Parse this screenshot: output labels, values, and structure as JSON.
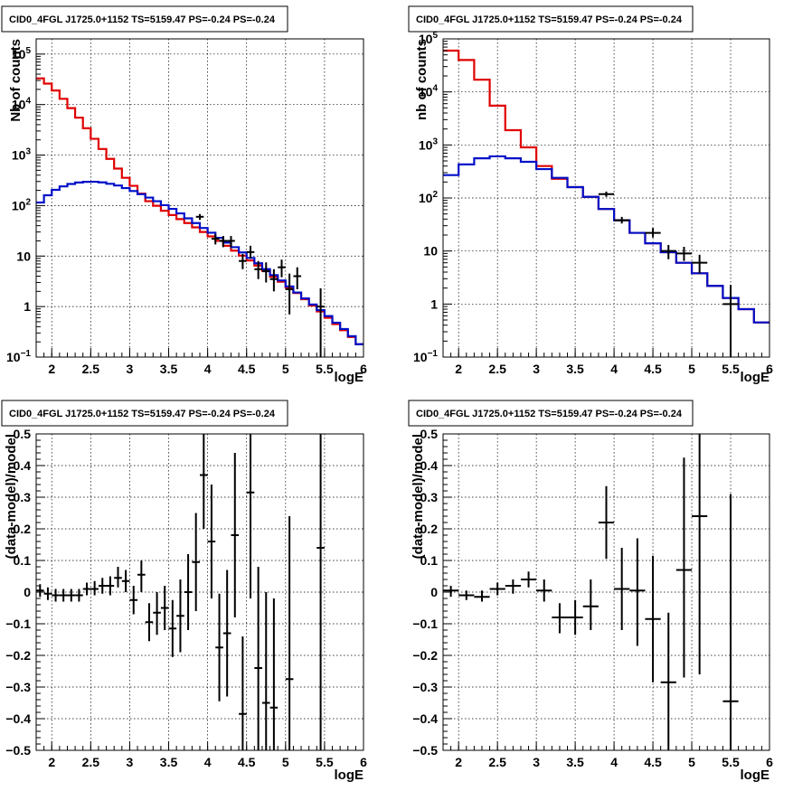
{
  "chart_data": [
    {
      "id": "top-left",
      "type": "line",
      "title": "CID0_4FGL J1725.0+1152 TS=5159.47 PS=-0.24 PS=-0.24",
      "xlabel": "logE",
      "ylabel": "Nb of counts",
      "xlim": [
        1.8,
        6.0
      ],
      "ylim": [
        0.1,
        200000
      ],
      "yscale": "log",
      "grid": true,
      "x_ticks": [
        {
          "v": 2,
          "label": "2"
        },
        {
          "v": 2.5,
          "label": "2.5"
        },
        {
          "v": 3,
          "label": "3"
        },
        {
          "v": 3.5,
          "label": "3.5"
        },
        {
          "v": 4,
          "label": "4"
        },
        {
          "v": 4.5,
          "label": "4.5"
        },
        {
          "v": 5,
          "label": "5"
        },
        {
          "v": 5.5,
          "label": "5.5"
        },
        {
          "v": 6,
          "label": "6"
        }
      ],
      "y_ticks": [
        {
          "v": 0.1,
          "base": "10",
          "exp": "−1"
        },
        {
          "v": 1,
          "base": "1",
          "exp": ""
        },
        {
          "v": 10,
          "base": "10",
          "exp": ""
        },
        {
          "v": 100,
          "base": "10",
          "exp": "2"
        },
        {
          "v": 1000,
          "base": "10",
          "exp": "3"
        },
        {
          "v": 10000,
          "base": "10",
          "exp": "4"
        },
        {
          "v": 100000,
          "base": "10",
          "exp": "5"
        }
      ],
      "bin_edges": [
        1.8,
        1.9,
        2.0,
        2.1,
        2.2,
        2.3,
        2.4,
        2.5,
        2.6,
        2.7,
        2.8,
        2.9,
        3.0,
        3.1,
        3.2,
        3.3,
        3.4,
        3.5,
        3.6,
        3.7,
        3.8,
        3.9,
        4.0,
        4.1,
        4.2,
        4.3,
        4.4,
        4.5,
        4.6,
        4.7,
        4.8,
        4.9,
        5.0,
        5.1,
        5.2,
        5.3,
        5.4,
        5.5,
        5.6,
        5.7,
        5.8,
        5.9,
        6.0
      ],
      "series": [
        {
          "style": "model",
          "color": "#e00000",
          "values": [
            33000,
            26000,
            19000,
            13000,
            8500,
            5500,
            3400,
            2100,
            1320,
            840,
            540,
            355,
            246,
            172,
            122,
            99,
            79,
            65,
            54,
            45,
            37,
            30,
            24.5,
            20,
            16,
            12.8,
            10.2,
            8.2,
            6.5,
            5.1,
            3.9,
            3.1,
            2.4,
            1.85,
            1.4,
            1.05,
            0.8,
            0.6,
            0.45,
            0.34,
            0.25,
            0.18
          ]
        },
        {
          "style": "background",
          "color": "#0010c8",
          "values": [
            115,
            160,
            205,
            240,
            268,
            286,
            295,
            296,
            288,
            270,
            250,
            222,
            194,
            168,
            144,
            122,
            102,
            86,
            70,
            56,
            45,
            36,
            29,
            23,
            18.5,
            15,
            11.8,
            9.2,
            7.2,
            5.5,
            4.2,
            3.3,
            2.5,
            1.9,
            1.45,
            1.1,
            0.85,
            0.65,
            0.48,
            0.36,
            0.26,
            0.18
          ]
        }
      ],
      "points": [
        {
          "x": 3.9,
          "xe": 0.05,
          "y": 60,
          "lo": 52,
          "hi": 68
        },
        {
          "x": 4.1,
          "xe": 0.05,
          "y": 22,
          "lo": 17,
          "hi": 27
        },
        {
          "x": 4.2,
          "xe": 0.05,
          "y": 20,
          "lo": 15,
          "hi": 25
        },
        {
          "x": 4.3,
          "xe": 0.05,
          "y": 20,
          "lo": 15,
          "hi": 25
        },
        {
          "x": 4.45,
          "xe": 0.05,
          "y": 8,
          "lo": 5.5,
          "hi": 11
        },
        {
          "x": 4.55,
          "xe": 0.05,
          "y": 12,
          "lo": 9,
          "hi": 16
        },
        {
          "x": 4.65,
          "xe": 0.05,
          "y": 5.5,
          "lo": 3.5,
          "hi": 8
        },
        {
          "x": 4.75,
          "xe": 0.05,
          "y": 5,
          "lo": 3,
          "hi": 7.5
        },
        {
          "x": 4.85,
          "xe": 0.05,
          "y": 3.5,
          "lo": 2,
          "hi": 5.5
        },
        {
          "x": 4.95,
          "xe": 0.05,
          "y": 6,
          "lo": 3.8,
          "hi": 8.5
        },
        {
          "x": 5.05,
          "xe": 0.05,
          "y": 2.2,
          "lo": 0.7,
          "hi": 4.5
        },
        {
          "x": 5.15,
          "xe": 0.05,
          "y": 4,
          "lo": 2.2,
          "hi": 6
        },
        {
          "x": 5.45,
          "xe": 0.05,
          "y": 1,
          "lo": 0.1,
          "hi": 2.3
        }
      ]
    },
    {
      "id": "top-right",
      "type": "line",
      "title": "CID0_4FGL J1725.0+1152 TS=5159.47 PS=-0.24 PS=-0.24",
      "xlabel": "logE",
      "ylabel": "nb of counts",
      "xlim": [
        1.8,
        6.0
      ],
      "ylim": [
        0.1,
        100000
      ],
      "yscale": "log",
      "grid": true,
      "x_ticks": [
        {
          "v": 2,
          "label": "2"
        },
        {
          "v": 2.5,
          "label": "2.5"
        },
        {
          "v": 3,
          "label": "3"
        },
        {
          "v": 3.5,
          "label": "3.5"
        },
        {
          "v": 4,
          "label": "4"
        },
        {
          "v": 4.5,
          "label": "4.5"
        },
        {
          "v": 5,
          "label": "5"
        },
        {
          "v": 5.5,
          "label": "5.5"
        },
        {
          "v": 6,
          "label": "6"
        }
      ],
      "y_ticks": [
        {
          "v": 0.1,
          "base": "10",
          "exp": "−1"
        },
        {
          "v": 1,
          "base": "1",
          "exp": ""
        },
        {
          "v": 10,
          "base": "10",
          "exp": ""
        },
        {
          "v": 100,
          "base": "10",
          "exp": "2"
        },
        {
          "v": 1000,
          "base": "10",
          "exp": "3"
        },
        {
          "v": 10000,
          "base": "10",
          "exp": "4"
        },
        {
          "v": 100000,
          "base": "10",
          "exp": "5"
        }
      ],
      "bin_edges": [
        1.8,
        2.0,
        2.2,
        2.4,
        2.6,
        2.8,
        3.0,
        3.2,
        3.4,
        3.6,
        3.8,
        4.0,
        4.2,
        4.4,
        4.6,
        4.8,
        5.0,
        5.2,
        5.4,
        5.6,
        5.8,
        6.0
      ],
      "series": [
        {
          "style": "model",
          "color": "#e00000",
          "values": [
            60000,
            40000,
            17000,
            5500,
            1900,
            900,
            400,
            230,
            160,
            105,
            62,
            38,
            22,
            14,
            9.5,
            6,
            3.8,
            2.2,
            1.3,
            0.8,
            0.45
          ]
        },
        {
          "style": "background",
          "color": "#0010c8",
          "values": [
            270,
            430,
            560,
            610,
            560,
            480,
            350,
            240,
            160,
            105,
            62,
            38,
            22,
            14,
            9.5,
            6,
            3.8,
            2.2,
            1.3,
            0.8,
            0.45
          ]
        }
      ],
      "points": [
        {
          "x": 3.9,
          "xe": 0.1,
          "y": 118,
          "lo": 105,
          "hi": 132
        },
        {
          "x": 4.1,
          "xe": 0.1,
          "y": 38,
          "lo": 33,
          "hi": 44
        },
        {
          "x": 4.5,
          "xe": 0.1,
          "y": 22,
          "lo": 18,
          "hi": 27
        },
        {
          "x": 4.7,
          "xe": 0.1,
          "y": 10,
          "lo": 7,
          "hi": 13
        },
        {
          "x": 4.9,
          "xe": 0.1,
          "y": 9,
          "lo": 6.5,
          "hi": 12
        },
        {
          "x": 5.1,
          "xe": 0.1,
          "y": 6,
          "lo": 3.8,
          "hi": 8.5
        },
        {
          "x": 5.5,
          "xe": 0.1,
          "y": 1,
          "lo": 0.1,
          "hi": 2.3
        }
      ]
    },
    {
      "id": "bottom-left",
      "type": "scatter",
      "title": "CID0_4FGL J1725.0+1152 TS=5159.47 PS=-0.24 PS=-0.24",
      "xlabel": "logE",
      "ylabel": "(data-model)/model",
      "xlim": [
        1.8,
        6.0
      ],
      "ylim": [
        -0.5,
        0.5
      ],
      "yscale": "linear",
      "grid": true,
      "x_ticks": [
        {
          "v": 2,
          "label": "2"
        },
        {
          "v": 2.5,
          "label": "2.5"
        },
        {
          "v": 3,
          "label": "3"
        },
        {
          "v": 3.5,
          "label": "3.5"
        },
        {
          "v": 4,
          "label": "4"
        },
        {
          "v": 4.5,
          "label": "4.5"
        },
        {
          "v": 5,
          "label": "5"
        },
        {
          "v": 5.5,
          "label": "5.5"
        },
        {
          "v": 6,
          "label": "6"
        }
      ],
      "y_ticks": [
        {
          "v": -0.5,
          "label": "−0.5"
        },
        {
          "v": -0.4,
          "label": "−0.4"
        },
        {
          "v": -0.3,
          "label": "−0.3"
        },
        {
          "v": -0.2,
          "label": "−0.2"
        },
        {
          "v": -0.1,
          "label": "−0.1"
        },
        {
          "v": 0,
          "label": "0"
        },
        {
          "v": 0.1,
          "label": "0.1"
        },
        {
          "v": 0.2,
          "label": "0.2"
        },
        {
          "v": 0.3,
          "label": "0.3"
        },
        {
          "v": 0.4,
          "label": "0.4"
        },
        {
          "v": 0.5,
          "label": "0.5"
        }
      ],
      "points": [
        {
          "x": 1.85,
          "xe": 0.05,
          "y": 0.005,
          "lo": -0.015,
          "hi": 0.025
        },
        {
          "x": 1.95,
          "xe": 0.05,
          "y": -0.005,
          "lo": -0.025,
          "hi": 0.015
        },
        {
          "x": 2.05,
          "xe": 0.05,
          "y": -0.01,
          "lo": -0.03,
          "hi": 0.01
        },
        {
          "x": 2.15,
          "xe": 0.05,
          "y": -0.01,
          "lo": -0.03,
          "hi": 0.01
        },
        {
          "x": 2.25,
          "xe": 0.05,
          "y": -0.01,
          "lo": -0.03,
          "hi": 0.01
        },
        {
          "x": 2.35,
          "xe": 0.05,
          "y": -0.01,
          "lo": -0.03,
          "hi": 0.01
        },
        {
          "x": 2.45,
          "xe": 0.05,
          "y": 0.01,
          "lo": -0.01,
          "hi": 0.03
        },
        {
          "x": 2.55,
          "xe": 0.05,
          "y": 0.01,
          "lo": -0.01,
          "hi": 0.035
        },
        {
          "x": 2.65,
          "xe": 0.05,
          "y": 0.02,
          "lo": -0.005,
          "hi": 0.045
        },
        {
          "x": 2.75,
          "xe": 0.05,
          "y": 0.02,
          "lo": -0.01,
          "hi": 0.05
        },
        {
          "x": 2.85,
          "xe": 0.05,
          "y": 0.045,
          "lo": 0.015,
          "hi": 0.08
        },
        {
          "x": 2.95,
          "xe": 0.05,
          "y": 0.035,
          "lo": 0.0,
          "hi": 0.07
        },
        {
          "x": 3.05,
          "xe": 0.05,
          "y": -0.025,
          "lo": -0.07,
          "hi": 0.02
        },
        {
          "x": 3.15,
          "xe": 0.05,
          "y": 0.055,
          "lo": 0.0,
          "hi": 0.1
        },
        {
          "x": 3.25,
          "xe": 0.05,
          "y": -0.095,
          "lo": -0.155,
          "hi": -0.035
        },
        {
          "x": 3.35,
          "xe": 0.05,
          "y": -0.065,
          "lo": -0.135,
          "hi": 0.0
        },
        {
          "x": 3.45,
          "xe": 0.05,
          "y": -0.05,
          "lo": -0.12,
          "hi": 0.02
        },
        {
          "x": 3.55,
          "xe": 0.05,
          "y": -0.115,
          "lo": -0.205,
          "hi": -0.025
        },
        {
          "x": 3.65,
          "xe": 0.05,
          "y": -0.075,
          "lo": -0.19,
          "hi": 0.04
        },
        {
          "x": 3.75,
          "xe": 0.05,
          "y": 0.0,
          "lo": -0.12,
          "hi": 0.12
        },
        {
          "x": 3.85,
          "xe": 0.05,
          "y": 0.095,
          "lo": -0.06,
          "hi": 0.25
        },
        {
          "x": 3.95,
          "xe": 0.05,
          "y": 0.37,
          "lo": 0.2,
          "hi": 0.5
        },
        {
          "x": 4.05,
          "xe": 0.05,
          "y": 0.16,
          "lo": -0.02,
          "hi": 0.34
        },
        {
          "x": 4.15,
          "xe": 0.05,
          "y": -0.175,
          "lo": -0.345,
          "hi": -0.005
        },
        {
          "x": 4.25,
          "xe": 0.05,
          "y": -0.13,
          "lo": -0.33,
          "hi": 0.07
        },
        {
          "x": 4.35,
          "xe": 0.05,
          "y": 0.18,
          "lo": -0.08,
          "hi": 0.44
        },
        {
          "x": 4.45,
          "xe": 0.05,
          "y": -0.385,
          "lo": -0.5,
          "hi": -0.14
        },
        {
          "x": 4.55,
          "xe": 0.05,
          "y": 0.315,
          "lo": -0.02,
          "hi": 0.5
        },
        {
          "x": 4.65,
          "xe": 0.05,
          "y": -0.24,
          "lo": -0.5,
          "hi": 0.08
        },
        {
          "x": 4.75,
          "xe": 0.05,
          "y": -0.35,
          "lo": -0.5,
          "hi": 0.0
        },
        {
          "x": 4.85,
          "xe": 0.05,
          "y": -0.365,
          "lo": -0.5,
          "hi": -0.02
        },
        {
          "x": 5.05,
          "xe": 0.05,
          "y": -0.275,
          "lo": -0.5,
          "hi": 0.24
        },
        {
          "x": 5.45,
          "xe": 0.05,
          "y": 0.14,
          "lo": -0.5,
          "hi": 0.5
        }
      ]
    },
    {
      "id": "bottom-right",
      "type": "scatter",
      "title": "CID0_4FGL J1725.0+1152 TS=5159.47 PS=-0.24 PS=-0.24",
      "xlabel": "logE",
      "ylabel": "(data-model)/model",
      "xlim": [
        1.8,
        6.0
      ],
      "ylim": [
        -0.5,
        0.5
      ],
      "yscale": "linear",
      "grid": true,
      "x_ticks": [
        {
          "v": 2,
          "label": "2"
        },
        {
          "v": 2.5,
          "label": "2.5"
        },
        {
          "v": 3,
          "label": "3"
        },
        {
          "v": 3.5,
          "label": "3.5"
        },
        {
          "v": 4,
          "label": "4"
        },
        {
          "v": 4.5,
          "label": "4.5"
        },
        {
          "v": 5,
          "label": "5"
        },
        {
          "v": 5.5,
          "label": "5.5"
        },
        {
          "v": 6,
          "label": "6"
        }
      ],
      "y_ticks": [
        {
          "v": -0.5,
          "label": "−0.5"
        },
        {
          "v": -0.4,
          "label": "−0.4"
        },
        {
          "v": -0.3,
          "label": "−0.3"
        },
        {
          "v": -0.2,
          "label": "−0.2"
        },
        {
          "v": -0.1,
          "label": "−0.1"
        },
        {
          "v": 0,
          "label": "0"
        },
        {
          "v": 0.1,
          "label": "0.1"
        },
        {
          "v": 0.2,
          "label": "0.2"
        },
        {
          "v": 0.3,
          "label": "0.3"
        },
        {
          "v": 0.4,
          "label": "0.4"
        },
        {
          "v": 0.5,
          "label": "0.5"
        }
      ],
      "points": [
        {
          "x": 1.9,
          "xe": 0.1,
          "y": 0.005,
          "lo": -0.015,
          "hi": 0.02
        },
        {
          "x": 2.1,
          "xe": 0.1,
          "y": -0.01,
          "lo": -0.025,
          "hi": 0.005
        },
        {
          "x": 2.3,
          "xe": 0.1,
          "y": -0.015,
          "lo": -0.03,
          "hi": 0.005
        },
        {
          "x": 2.5,
          "xe": 0.1,
          "y": 0.01,
          "lo": -0.01,
          "hi": 0.03
        },
        {
          "x": 2.7,
          "xe": 0.1,
          "y": 0.02,
          "lo": -0.005,
          "hi": 0.04
        },
        {
          "x": 2.9,
          "xe": 0.1,
          "y": 0.04,
          "lo": 0.015,
          "hi": 0.065
        },
        {
          "x": 3.1,
          "xe": 0.1,
          "y": 0.005,
          "lo": -0.03,
          "hi": 0.04
        },
        {
          "x": 3.3,
          "xe": 0.1,
          "y": -0.08,
          "lo": -0.13,
          "hi": -0.035
        },
        {
          "x": 3.5,
          "xe": 0.1,
          "y": -0.08,
          "lo": -0.135,
          "hi": -0.025
        },
        {
          "x": 3.7,
          "xe": 0.1,
          "y": -0.045,
          "lo": -0.12,
          "hi": 0.04
        },
        {
          "x": 3.9,
          "xe": 0.1,
          "y": 0.22,
          "lo": 0.105,
          "hi": 0.335
        },
        {
          "x": 4.1,
          "xe": 0.1,
          "y": 0.01,
          "lo": -0.12,
          "hi": 0.14
        },
        {
          "x": 4.3,
          "xe": 0.1,
          "y": 0.005,
          "lo": -0.17,
          "hi": 0.17
        },
        {
          "x": 4.5,
          "xe": 0.1,
          "y": -0.085,
          "lo": -0.285,
          "hi": 0.115
        },
        {
          "x": 4.7,
          "xe": 0.1,
          "y": -0.285,
          "lo": -0.5,
          "hi": -0.065
        },
        {
          "x": 4.9,
          "xe": 0.1,
          "y": 0.07,
          "lo": -0.27,
          "hi": 0.425
        },
        {
          "x": 5.1,
          "xe": 0.1,
          "y": 0.24,
          "lo": -0.26,
          "hi": 0.5
        },
        {
          "x": 5.5,
          "xe": 0.1,
          "y": -0.345,
          "lo": -0.5,
          "hi": 0.31
        }
      ]
    }
  ]
}
